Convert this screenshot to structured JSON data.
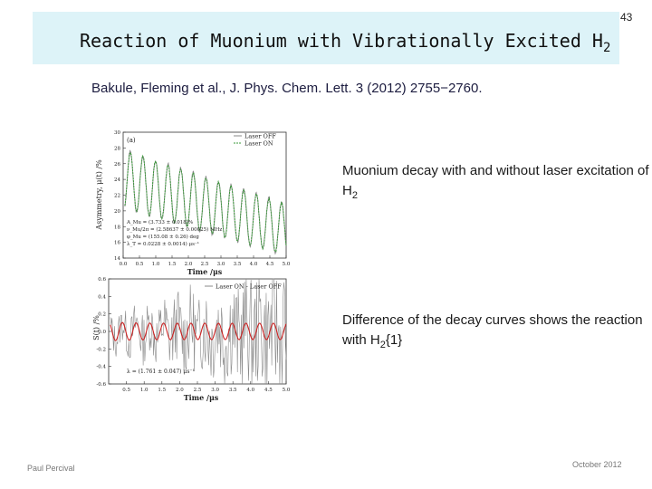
{
  "slide": {
    "title": "Reaction of Muonium with Vibrationally Excited H",
    "title_subscript": "2",
    "number": "43",
    "citation": "Bakule, Fleming et al., J. Phys. Chem. Lett. 3 (2012) 2755−2760.",
    "description_1_main": "Muonium decay with and without laser excitation of H",
    "description_1_sub": "2",
    "description_2_main": "Difference of the decay curves shows the reaction with H",
    "description_2_sub": "2",
    "description_2_tail": "{1}",
    "footer_left": "Paul Percival",
    "footer_right": "October 2012"
  },
  "chart_data": [
    {
      "type": "line",
      "panel_label": "(a)",
      "xlabel": "Time /μs",
      "ylabel": "Asymmetry, μ(t) /%",
      "xlim": [
        0,
        5
      ],
      "ylim": [
        14,
        30
      ],
      "x_ticks": [
        "0.0",
        "0.5",
        "1.0",
        "1.5",
        "2.0",
        "2.5",
        "3.0",
        "3.5",
        "4.0",
        "4.5",
        "5.0"
      ],
      "y_ticks": [
        "14",
        "16",
        "18",
        "20",
        "22",
        "24",
        "26",
        "28",
        "30"
      ],
      "legend": [
        "Laser OFF",
        "Laser ON"
      ],
      "legend_position": "top-right",
      "series_colors": [
        "#8a8a8a",
        "#3a9a3a"
      ],
      "model": {
        "amplitude_0": 3.733,
        "frequency_mhz": 2.58637,
        "phase_deg": 155.08,
        "lambda": 0.0228,
        "baseline_start": 24.1,
        "baseline_slope": -1.3
      },
      "annotations": [
        "A_Mu = (3.733 ± 0.018)%",
        "ν_Mu/2π = (2.58637 ± 0.00025) MHz",
        "φ_Mu = (155.08 ± 0.26) deg",
        "λ_T = 0.0228 ± 0.0014) μs⁻¹"
      ]
    },
    {
      "type": "line",
      "xlabel": "Time /μs",
      "ylabel": "S(t) /%",
      "xlim": [
        0,
        5
      ],
      "ylim": [
        -0.6,
        0.6
      ],
      "x_ticks": [
        "0.5",
        "1.0",
        "1.5",
        "2.0",
        "2.5",
        "3.0",
        "3.5",
        "4.0",
        "4.5",
        "5.0"
      ],
      "y_ticks": [
        "0.6",
        "0.4",
        "0.2",
        "0.0",
        "-0.2",
        "-0.4",
        "-0.6"
      ],
      "legend": [
        "Laser ON - Laser OFF"
      ],
      "legend_position": "top-right",
      "series_colors": [
        "#8a8a8a",
        "#cc2222"
      ],
      "model": {
        "amplitude_0": 0.11,
        "frequency_mhz": 2.58637,
        "lambda": 1.761
      },
      "annotations": [
        "λ = (1.761 ± 0.047) μs⁻¹"
      ]
    }
  ]
}
